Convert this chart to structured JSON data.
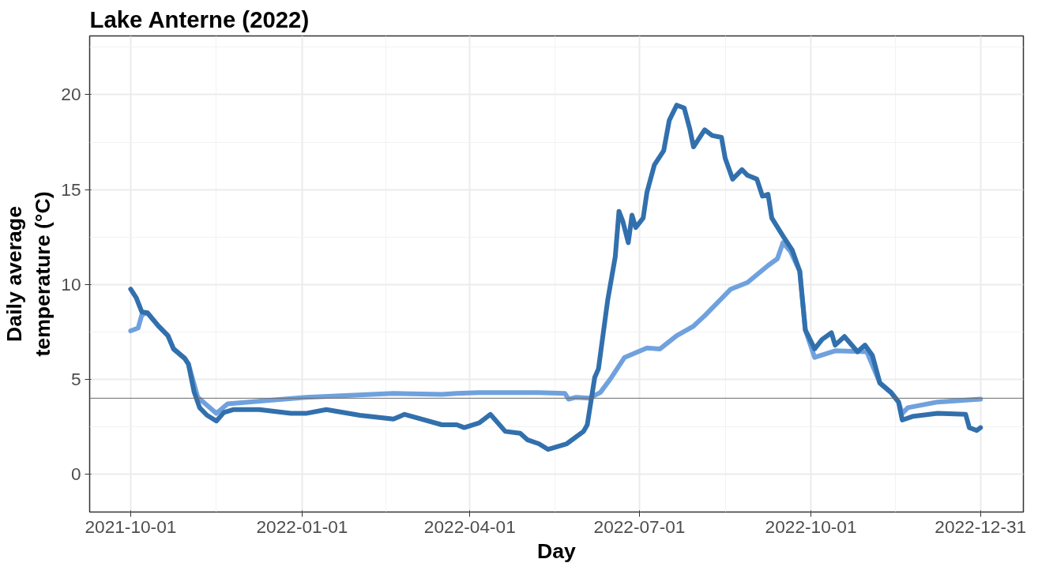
{
  "chart_data": {
    "type": "line",
    "title": "Lake Anterne (2022)",
    "xlabel": "Day",
    "ylabel": "Daily average\ntemperature (°C)",
    "xlim": [
      "2021-09-09",
      "2023-01-23"
    ],
    "xticks": [
      "2021-10-01",
      "2022-01-01",
      "2022-04-01",
      "2022-07-01",
      "2022-10-01",
      "2022-12-31"
    ],
    "ylim": [
      -2,
      23.1
    ],
    "yticks": [
      0,
      5,
      10,
      15,
      20
    ],
    "grid": true,
    "line_style": "solid",
    "marker": "none",
    "ref_lines": [
      {
        "axis": "y",
        "value": 4,
        "color": "#6b6b6b"
      }
    ],
    "series": [
      {
        "color": "#6fa1de",
        "x": [
          "2021-10-01",
          "2021-10-05",
          "2021-10-07",
          "2021-10-10",
          "2021-10-16",
          "2021-10-21",
          "2021-10-24",
          "2021-10-30",
          "2021-11-01",
          "2021-11-05",
          "2021-11-06",
          "2021-11-16",
          "2021-11-22",
          "2022-01-03",
          "2022-02-19",
          "2022-03-17",
          "2022-03-25",
          "2022-04-06",
          "2022-05-08",
          "2022-05-22",
          "2022-05-24",
          "2022-05-28",
          "2022-06-04",
          "2022-06-10",
          "2022-06-16",
          "2022-06-23",
          "2022-07-05",
          "2022-07-12",
          "2022-07-21",
          "2022-07-30",
          "2022-08-05",
          "2022-08-19",
          "2022-08-28",
          "2022-09-08",
          "2022-09-13",
          "2022-09-16",
          "2022-09-20",
          "2022-09-25",
          "2022-09-28",
          "2022-10-03",
          "2022-10-14",
          "2022-10-31",
          "2022-11-07",
          "2022-11-13",
          "2022-11-17",
          "2022-11-19",
          "2022-11-22",
          "2022-12-08",
          "2022-12-31"
        ],
        "values": [
          7.55,
          7.7,
          8.4,
          8.5,
          7.8,
          7.3,
          6.6,
          6.1,
          5.8,
          4.4,
          4.05,
          3.2,
          3.7,
          4.05,
          4.25,
          4.2,
          4.25,
          4.3,
          4.3,
          4.25,
          3.95,
          4.05,
          4.0,
          4.3,
          5.1,
          6.15,
          6.65,
          6.6,
          7.3,
          7.8,
          8.35,
          9.75,
          10.1,
          11.0,
          11.35,
          12.2,
          11.75,
          10.7,
          7.6,
          6.15,
          6.5,
          6.45,
          4.8,
          4.3,
          3.8,
          3.2,
          3.5,
          3.8,
          3.95
        ]
      },
      {
        "color": "#3270ad",
        "x": [
          "2021-10-01",
          "2021-10-04",
          "2021-10-07",
          "2021-10-10",
          "2021-10-16",
          "2021-10-21",
          "2021-10-24",
          "2021-10-30",
          "2021-11-01",
          "2021-11-04",
          "2021-11-07",
          "2021-11-11",
          "2021-11-16",
          "2021-11-20",
          "2021-11-25",
          "2021-12-09",
          "2021-12-26",
          "2022-01-03",
          "2022-01-14",
          "2022-02-01",
          "2022-02-19",
          "2022-02-25",
          "2022-03-17",
          "2022-03-25",
          "2022-03-29",
          "2022-04-06",
          "2022-04-12",
          "2022-04-20",
          "2022-04-28",
          "2022-05-02",
          "2022-05-08",
          "2022-05-13",
          "2022-05-23",
          "2022-06-01",
          "2022-06-03",
          "2022-06-07",
          "2022-06-09",
          "2022-06-14",
          "2022-06-18",
          "2022-06-20",
          "2022-06-22",
          "2022-06-25",
          "2022-06-27",
          "2022-06-29",
          "2022-07-03",
          "2022-07-05",
          "2022-07-09",
          "2022-07-14",
          "2022-07-17",
          "2022-07-21",
          "2022-07-25",
          "2022-07-28",
          "2022-07-30",
          "2022-08-05",
          "2022-08-09",
          "2022-08-14",
          "2022-08-16",
          "2022-08-20",
          "2022-08-25",
          "2022-08-28",
          "2022-09-02",
          "2022-09-05",
          "2022-09-08",
          "2022-09-10",
          "2022-09-16",
          "2022-09-21",
          "2022-09-25",
          "2022-09-28",
          "2022-10-03",
          "2022-10-07",
          "2022-10-12",
          "2022-10-14",
          "2022-10-19",
          "2022-10-26",
          "2022-10-30",
          "2022-11-03",
          "2022-11-07",
          "2022-11-13",
          "2022-11-17",
          "2022-11-19",
          "2022-11-25",
          "2022-12-08",
          "2022-12-23",
          "2022-12-25",
          "2022-12-29",
          "2022-12-31"
        ],
        "values": [
          9.75,
          9.3,
          8.55,
          8.5,
          7.8,
          7.3,
          6.6,
          6.1,
          5.8,
          4.35,
          3.5,
          3.1,
          2.8,
          3.25,
          3.4,
          3.4,
          3.2,
          3.2,
          3.4,
          3.1,
          2.9,
          3.15,
          2.6,
          2.6,
          2.45,
          2.7,
          3.15,
          2.25,
          2.15,
          1.8,
          1.6,
          1.3,
          1.6,
          2.25,
          2.6,
          5.1,
          5.55,
          9.2,
          11.45,
          13.85,
          13.35,
          12.2,
          13.65,
          13.0,
          13.5,
          14.85,
          16.3,
          17.05,
          18.65,
          19.45,
          19.3,
          18.2,
          17.25,
          18.15,
          17.85,
          17.75,
          16.65,
          15.55,
          16.05,
          15.75,
          15.55,
          14.65,
          14.75,
          13.5,
          12.55,
          11.8,
          10.7,
          7.6,
          6.6,
          7.1,
          7.45,
          6.8,
          7.25,
          6.45,
          6.8,
          6.25,
          4.8,
          4.3,
          3.8,
          2.85,
          3.05,
          3.2,
          3.15,
          2.45,
          2.3,
          2.45
        ]
      }
    ]
  }
}
